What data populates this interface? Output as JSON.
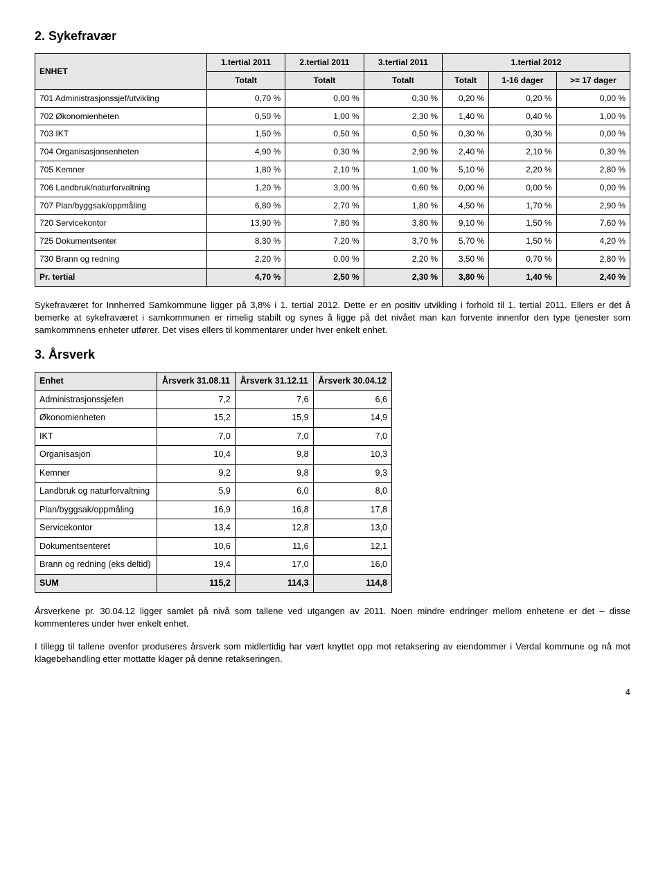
{
  "section1": {
    "title": "2. Sykefravær",
    "table": {
      "headers_row1": [
        "ENHET",
        "1.tertial 2011",
        "2.tertial 2011",
        "3.tertial 2011",
        "1.tertial 2012"
      ],
      "headers_row2": [
        "",
        "Totalt",
        "Totalt",
        "Totalt",
        "Totalt",
        "1-16 dager",
        ">= 17 dager"
      ],
      "rows": [
        [
          "701 Administrasjonssjef/utvikling",
          "0,70 %",
          "0,00 %",
          "0,30 %",
          "0,20 %",
          "0,20 %",
          "0,00 %"
        ],
        [
          "702 Økonomienheten",
          "0,50 %",
          "1,00 %",
          "2,30 %",
          "1,40 %",
          "0,40 %",
          "1,00 %"
        ],
        [
          "703 IKT",
          "1,50 %",
          "0,50 %",
          "0,50 %",
          "0,30 %",
          "0,30 %",
          "0,00 %"
        ],
        [
          "704 Organisasjonsenheten",
          "4,90 %",
          "0,30 %",
          "2,90 %",
          "2,40 %",
          "2,10 %",
          "0,30 %"
        ],
        [
          "705 Kemner",
          "1,80 %",
          "2,10 %",
          "1,00 %",
          "5,10 %",
          "2,20 %",
          "2,80 %"
        ],
        [
          "706 Landbruk/naturforvaltning",
          "1,20 %",
          "3,00 %",
          "0,60 %",
          "0,00 %",
          "0,00 %",
          "0,00 %"
        ],
        [
          "707 Plan/byggsak/oppmåling",
          "6,80 %",
          "2,70 %",
          "1,80 %",
          "4,50 %",
          "1,70 %",
          "2,90 %"
        ],
        [
          "720 Servicekontor",
          "13,90 %",
          "7,80 %",
          "3,80 %",
          "9,10 %",
          "1,50 %",
          "7,60 %"
        ],
        [
          "725 Dokumentsenter",
          "8,30 %",
          "7,20 %",
          "3,70 %",
          "5,70 %",
          "1,50 %",
          "4,20 %"
        ],
        [
          "730 Brann og redning",
          "2,20 %",
          "0,00 %",
          "2,20 %",
          "3,50 %",
          "0,70 %",
          "2,80 %"
        ]
      ],
      "total_row": [
        "Pr. tertial",
        "4,70 %",
        "2,50 %",
        "2,30 %",
        "3,80 %",
        "1,40 %",
        "2,40 %"
      ]
    },
    "paragraph": "Sykefraværet for Innherred Samkommune ligger på 3,8% i 1. tertial 2012. Dette er en positiv utvikling i forhold til 1. tertial 2011. Ellers er det å bemerke at sykefraværet i samkommunen er rimelig stabilt og synes å ligge på det nivået man kan forvente innenfor den type tjenester som samkommnens enheter utfører. Det vises ellers til kommentarer under hver enkelt enhet."
  },
  "section2": {
    "title": "3. Årsverk",
    "table": {
      "headers": [
        "Enhet",
        "Årsverk 31.08.11",
        "Årsverk 31.12.11",
        "Årsverk 30.04.12"
      ],
      "rows": [
        [
          "Administrasjonssjefen",
          "7,2",
          "7,6",
          "6,6"
        ],
        [
          "Økonomienheten",
          "15,2",
          "15,9",
          "14,9"
        ],
        [
          "IKT",
          "7,0",
          "7,0",
          "7,0"
        ],
        [
          "Organisasjon",
          "10,4",
          "9,8",
          "10,3"
        ],
        [
          "Kemner",
          "9,2",
          "9,8",
          "9,3"
        ],
        [
          "Landbruk og naturforvaltning",
          "5,9",
          "6,0",
          "8,0"
        ],
        [
          "Plan/byggsak/oppmåling",
          "16,9",
          "16,8",
          "17,8"
        ],
        [
          "Servicekontor",
          "13,4",
          "12,8",
          "13,0"
        ],
        [
          "Dokumentsenteret",
          "10,6",
          "11,6",
          "12,1"
        ],
        [
          "Brann og redning (eks deltid)",
          "19,4",
          "17,0",
          "16,0"
        ]
      ],
      "sum_row": [
        "SUM",
        "115,2",
        "114,3",
        "114,8"
      ]
    },
    "paragraph1": "Årsverkene pr. 30.04.12 ligger samlet på nivå som tallene ved utgangen av 2011. Noen mindre endringer mellom enhetene er det – disse kommenteres under hver enkelt enhet.",
    "paragraph2": "I tillegg til tallene ovenfor produseres årsverk som midlertidig har vært knyttet opp mot retaksering av eiendommer i Verdal kommune og nå mot klagebehandling etter mottatte klager på denne retakseringen."
  },
  "page_number": "4"
}
